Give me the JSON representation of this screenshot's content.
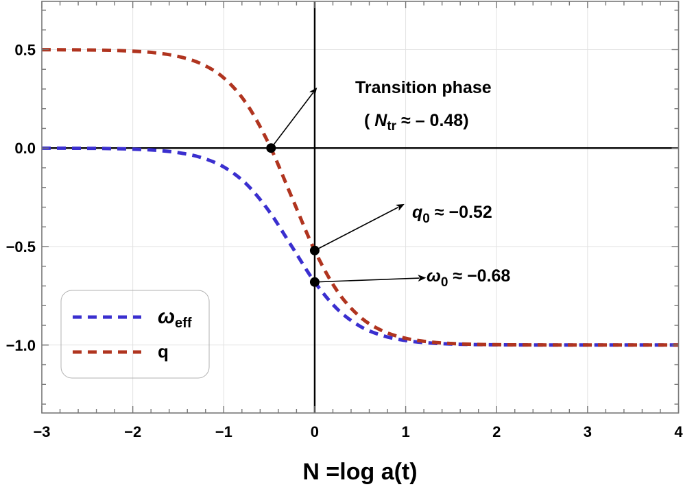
{
  "chart_data": {
    "type": "line",
    "title": "",
    "xlabel": "N =log a(t)",
    "ylabel": "",
    "xlim": [
      -3,
      4
    ],
    "ylim": [
      -1.345,
      0.745
    ],
    "grid": true,
    "legend_position": "lower-left (inside plot)",
    "x_ticks": [
      -3,
      -2,
      -1,
      0,
      1,
      2,
      3,
      4
    ],
    "x_tick_labels": [
      "−3",
      "−2",
      "−1",
      "0",
      "1",
      "2",
      "3",
      "4"
    ],
    "y_ticks": [
      0.5,
      0.0,
      -0.5,
      -1.0
    ],
    "y_tick_labels": [
      "0.5",
      "0.0",
      "−0.5",
      "−1.0"
    ],
    "x": [
      -3,
      -2.75,
      -2.5,
      -2.25,
      -2,
      -1.75,
      -1.5,
      -1.25,
      -1,
      -0.75,
      -0.5,
      -0.25,
      0,
      0.25,
      0.5,
      0.75,
      1,
      1.25,
      1.5,
      1.75,
      2,
      2.25,
      2.5,
      2.75,
      3,
      3.25,
      3.5,
      3.75,
      4
    ],
    "series": [
      {
        "name": "ω_eff",
        "legend_main": "ω",
        "legend_sub": "eff",
        "color": "#3a2fcf",
        "style": "dashed",
        "values": [
          -0.0003,
          -0.0006,
          -0.0012,
          -0.0025,
          -0.0052,
          -0.011,
          -0.0231,
          -0.0476,
          -0.0957,
          -0.183,
          -0.3217,
          -0.5009,
          -0.68,
          -0.8181,
          -0.905,
          -0.9527,
          -0.9771,
          -0.9891,
          -0.9948,
          -0.9975,
          -0.9988,
          -0.9995,
          -0.9997,
          -0.9999,
          -1.0,
          -1.0,
          -1.0,
          -1.0,
          -1.0
        ]
      },
      {
        "name": "q",
        "legend_main": "q",
        "legend_sub": "",
        "color": "#b0341f",
        "style": "dashed",
        "values": [
          0.4996,
          0.4991,
          0.4982,
          0.4963,
          0.4922,
          0.4835,
          0.4654,
          0.4286,
          0.3565,
          0.2255,
          0.0175,
          -0.2514,
          -0.52,
          -0.7272,
          -0.8575,
          -0.9291,
          -0.9657,
          -0.9837,
          -0.9922,
          -0.9963,
          -0.9982,
          -0.9993,
          -0.9996,
          -0.9999,
          -1.0,
          -1.0,
          -1.0,
          -1.0,
          -1.0
        ]
      }
    ],
    "marked_points": [
      {
        "name": "transition",
        "x": -0.48,
        "y": 0.0
      },
      {
        "name": "q0",
        "x": 0,
        "y": -0.52
      },
      {
        "name": "omega0",
        "x": 0,
        "y": -0.68
      }
    ],
    "annotations": [
      {
        "id": "transition",
        "line1": "Transition phase",
        "line2_open": "( ",
        "line2_var": "N",
        "line2_sub": "tr",
        "line2_rest": "  ≈ – 0.48)",
        "from": [
          -0.48,
          0.0
        ],
        "to": [
          -0.02,
          0.28
        ]
      },
      {
        "id": "q0",
        "var": "q",
        "sub": "0",
        "rest": " ≈ −0.52",
        "from": [
          0,
          -0.52
        ],
        "to": [
          0.92,
          -0.3
        ]
      },
      {
        "id": "omega0",
        "var": "ω",
        "sub": "0",
        "rest": " ≈ −0.68",
        "from": [
          0,
          -0.68
        ],
        "to": [
          1.15,
          -0.66
        ]
      }
    ]
  }
}
